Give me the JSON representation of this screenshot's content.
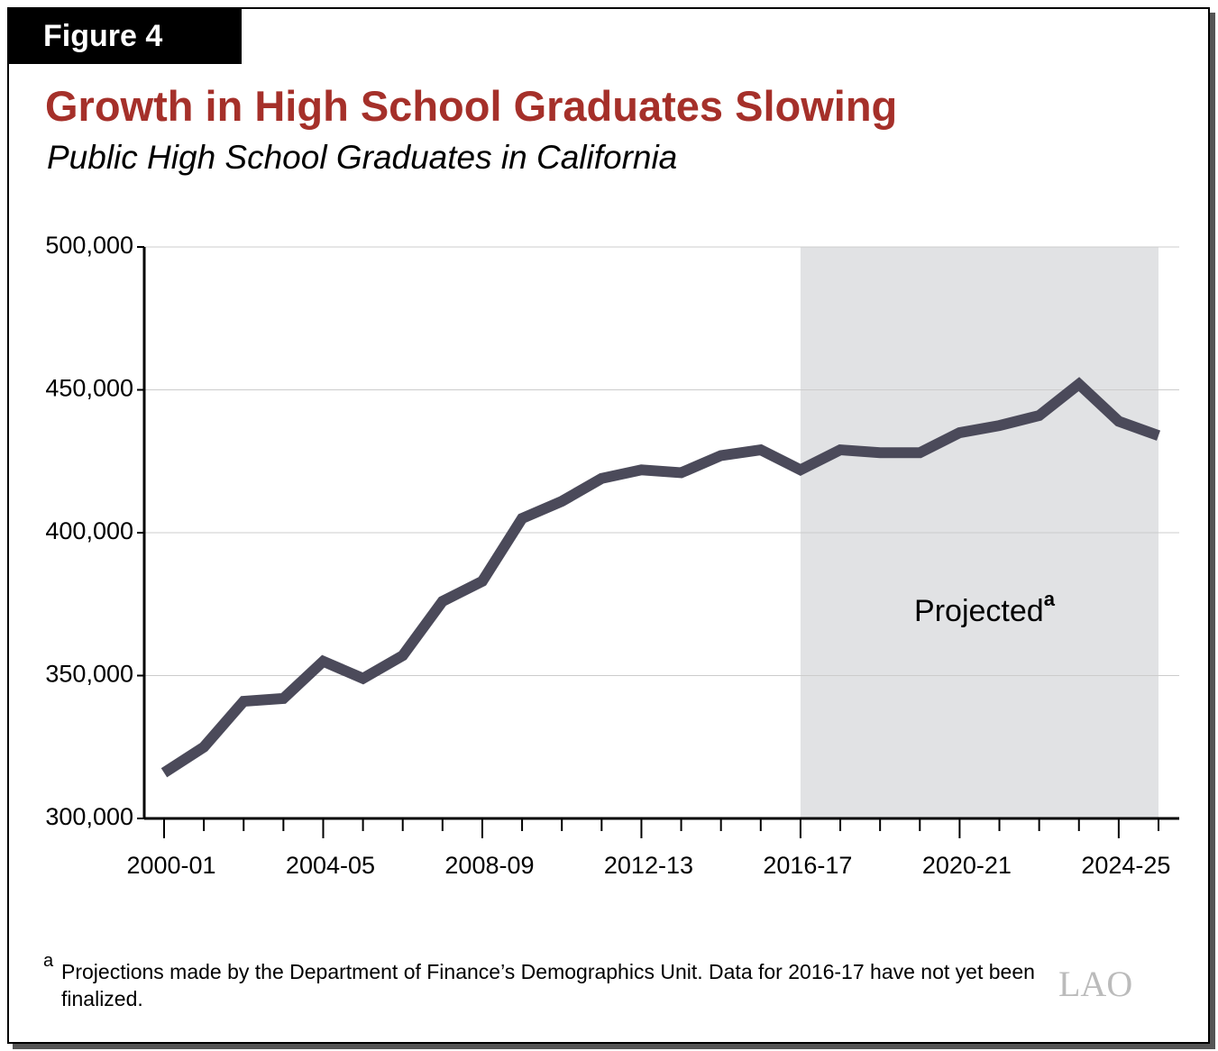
{
  "figure_label": "Figure 4",
  "chart_data": {
    "type": "line",
    "title": "Growth in High School Graduates Slowing",
    "subtitle": "Public High School Graduates in California",
    "categories": [
      "2000-01",
      null,
      null,
      null,
      "2004-05",
      null,
      null,
      null,
      "2008-09",
      null,
      null,
      null,
      "2012-13",
      null,
      null,
      null,
      "2016-17",
      null,
      null,
      null,
      "2020-21",
      null,
      null,
      null,
      "2024-25",
      null
    ],
    "series": [
      {
        "name": "Public High School Graduates",
        "color": "#4b4a5a",
        "values": [
          316000,
          325000,
          341000,
          342000,
          355000,
          349000,
          357000,
          376000,
          383000,
          405000,
          411000,
          419000,
          422000,
          421000,
          427000,
          429000,
          422000,
          429000,
          428000,
          428000,
          435000,
          437500,
          441000,
          452000,
          439000,
          434000
        ]
      }
    ],
    "ylim": [
      300000,
      500000
    ],
    "yticks": [
      {
        "value": 300000,
        "label": "300,000"
      },
      {
        "value": 350000,
        "label": "350,000"
      },
      {
        "value": 400000,
        "label": "400,000"
      },
      {
        "value": 450000,
        "label": "450,000"
      },
      {
        "value": 500000,
        "label": "500,000"
      }
    ],
    "grid": true,
    "shaded_from": "2016-17",
    "shade_color": "#e1e2e4",
    "annotation": {
      "text": "Projected",
      "superscript": "a"
    }
  },
  "footnote": {
    "marker": "a",
    "text": "Projections made by the Department of Finance’s Demographics Unit. Data for 2016-17 have not yet been finalized."
  },
  "logo": "LAO"
}
